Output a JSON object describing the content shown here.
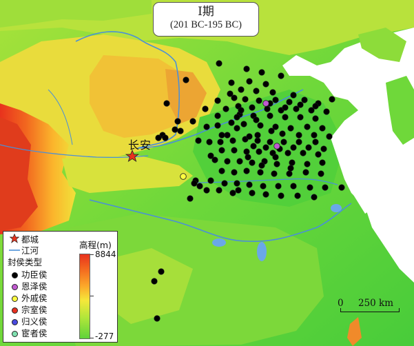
{
  "title": {
    "main": "I期",
    "sub": "(201 BC-195 BC)"
  },
  "capital": {
    "name": "长安"
  },
  "legend": {
    "items": [
      {
        "symbol": "star",
        "label": "都城",
        "color": "#e8321d"
      },
      {
        "symbol": "line",
        "label": "江河",
        "color": "#4a8fd8"
      },
      {
        "symbol": "heading",
        "label": "封侯类型"
      },
      {
        "symbol": "dot",
        "label": "功臣侯",
        "color": "#000000"
      },
      {
        "symbol": "dot",
        "label": "恩泽侯",
        "color": "#c05ad0"
      },
      {
        "symbol": "dot",
        "label": "外戚侯",
        "color": "#ffff40"
      },
      {
        "symbol": "dot",
        "label": "宗室侯",
        "color": "#e83020"
      },
      {
        "symbol": "dot",
        "label": "归义侯",
        "color": "#4a4ae0"
      },
      {
        "symbol": "dot",
        "label": "宦者侯",
        "color": "#80e0b0"
      }
    ],
    "elevation": {
      "title": "高程(m)",
      "max": "8844",
      "min": "-277"
    }
  },
  "scale": {
    "zero": "0",
    "max": "250 km"
  },
  "colors": {
    "river": "#4a8fd8",
    "lake": "#6aa8e8",
    "sea": "#ffffff",
    "low_plain": "#4ccf3a",
    "hills": "#d8e84a",
    "highland": "#e8321d",
    "marquis_gongchen": "#000000",
    "marquis_enze": "#c05ad0",
    "marquis_waiqi": "#ffff40"
  },
  "markers": {
    "gongchen_count": 150,
    "enze_count": 2,
    "waiqi_count": 1
  }
}
